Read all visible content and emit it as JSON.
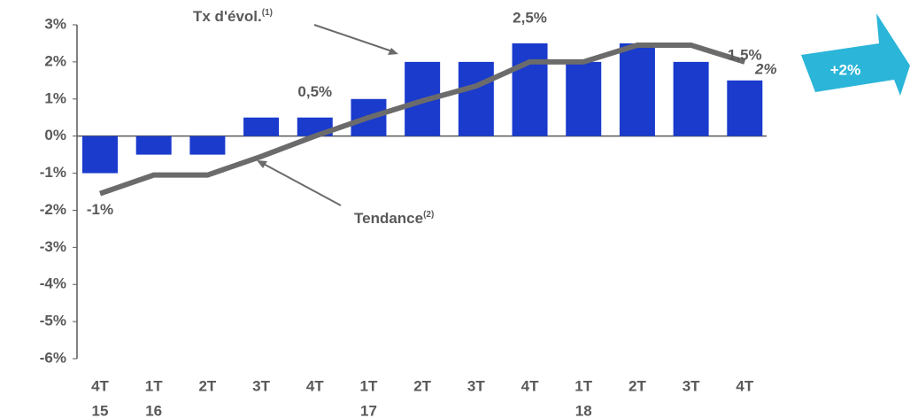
{
  "chart_data": {
    "type": "bar",
    "categories": [
      "4T",
      "1T",
      "2T",
      "3T",
      "4T",
      "1T",
      "2T",
      "3T",
      "4T",
      "1T",
      "2T",
      "3T",
      "4T"
    ],
    "year_labels": [
      "15",
      "16",
      null,
      null,
      null,
      "17",
      null,
      null,
      null,
      "18",
      null,
      null,
      null
    ],
    "series": [
      {
        "name": "Tx d'évol.",
        "name_sup": "(1)",
        "type": "bar",
        "color": "#1a3bcc",
        "values": [
          -1,
          -0.5,
          -0.5,
          0.5,
          0.5,
          1,
          2,
          2,
          2.5,
          2,
          2.5,
          2,
          1.5
        ],
        "value_labels": [
          "-1%",
          null,
          null,
          null,
          "0,5%",
          null,
          null,
          null,
          "2,5%",
          null,
          null,
          null,
          "1,5%"
        ]
      },
      {
        "name": "Tendance",
        "name_sup": "(2)",
        "type": "line",
        "color": "#6b6b6b",
        "values": [
          -1.55,
          -1.05,
          -1.05,
          -0.55,
          0,
          0.5,
          0.95,
          1.35,
          2,
          2,
          2.45,
          2.45,
          2
        ],
        "value_labels": [
          null,
          null,
          null,
          null,
          null,
          null,
          null,
          null,
          null,
          null,
          null,
          null,
          "2%"
        ]
      }
    ],
    "ylim": [
      -6,
      3
    ],
    "yticks": [
      {
        "value": -6,
        "label": "-6%"
      },
      {
        "value": -5,
        "label": "-5%"
      },
      {
        "value": -4,
        "label": "-4%"
      },
      {
        "value": -3,
        "label": "-3%"
      },
      {
        "value": -2,
        "label": "-2%"
      },
      {
        "value": -1,
        "label": "-1%"
      },
      {
        "value": 0,
        "label": "0%"
      },
      {
        "value": 1,
        "label": "1%"
      },
      {
        "value": 2,
        "label": "2%"
      },
      {
        "value": 3,
        "label": "3%"
      }
    ],
    "callout": "+2%",
    "callout_color": "#2bb5d8"
  }
}
